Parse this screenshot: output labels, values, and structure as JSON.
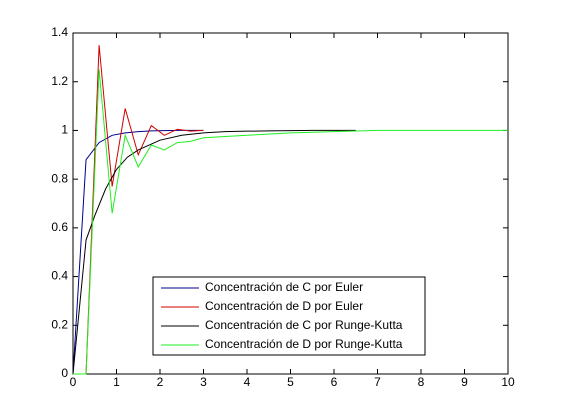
{
  "chart_data": {
    "type": "line",
    "xlim": [
      0,
      10
    ],
    "xticks": [
      0,
      1,
      2,
      3,
      4,
      5,
      6,
      7,
      8,
      9,
      10
    ],
    "ylim": [
      0,
      1.4
    ],
    "yticks": [
      0,
      0.2,
      0.4,
      0.6,
      0.8,
      1,
      1.2,
      1.4
    ],
    "legend": "lower-center",
    "series": [
      {
        "name": "Concentración de C por Euler",
        "color": "#00008b",
        "x": [
          0,
          0.3,
          0.6,
          0.9,
          1.2,
          1.5,
          1.8,
          2.1,
          2.4,
          2.7,
          3.0
        ],
        "values": [
          0,
          0.88,
          0.95,
          0.98,
          0.99,
          0.995,
          0.998,
          0.999,
          1,
          1,
          1
        ]
      },
      {
        "name": "Concentración de D por Euler",
        "color": "#d00000",
        "x": [
          0,
          0.3,
          0.6,
          0.9,
          1.2,
          1.5,
          1.8,
          2.1,
          2.4,
          2.7,
          3.0
        ],
        "values": [
          0,
          0,
          1.35,
          0.77,
          1.09,
          0.9,
          1.02,
          0.98,
          1.005,
          0.997,
          1
        ]
      },
      {
        "name": "Concentración de C por Runge-Kutta",
        "color": "#000000",
        "x": [
          0,
          0.3,
          0.5,
          0.75,
          1,
          1.25,
          1.5,
          2,
          2.5,
          3,
          3.5,
          4,
          4.5,
          5,
          5.5,
          6,
          6.5
        ],
        "values": [
          0,
          0.55,
          0.65,
          0.76,
          0.84,
          0.89,
          0.92,
          0.96,
          0.98,
          0.99,
          0.995,
          0.997,
          0.998,
          0.999,
          1,
          1,
          1
        ]
      },
      {
        "name": "Concentración de D por Runge-Kutta",
        "color": "#22ee22",
        "x": [
          0,
          0.3,
          0.6,
          0.9,
          1.2,
          1.5,
          1.8,
          2.1,
          2.4,
          2.7,
          3.0,
          3.5,
          4,
          5,
          6,
          7,
          8,
          9,
          10
        ],
        "values": [
          0,
          0,
          1.25,
          0.66,
          0.98,
          0.85,
          0.94,
          0.92,
          0.95,
          0.955,
          0.97,
          0.975,
          0.98,
          0.99,
          0.995,
          1,
          1,
          1,
          1
        ]
      }
    ]
  }
}
